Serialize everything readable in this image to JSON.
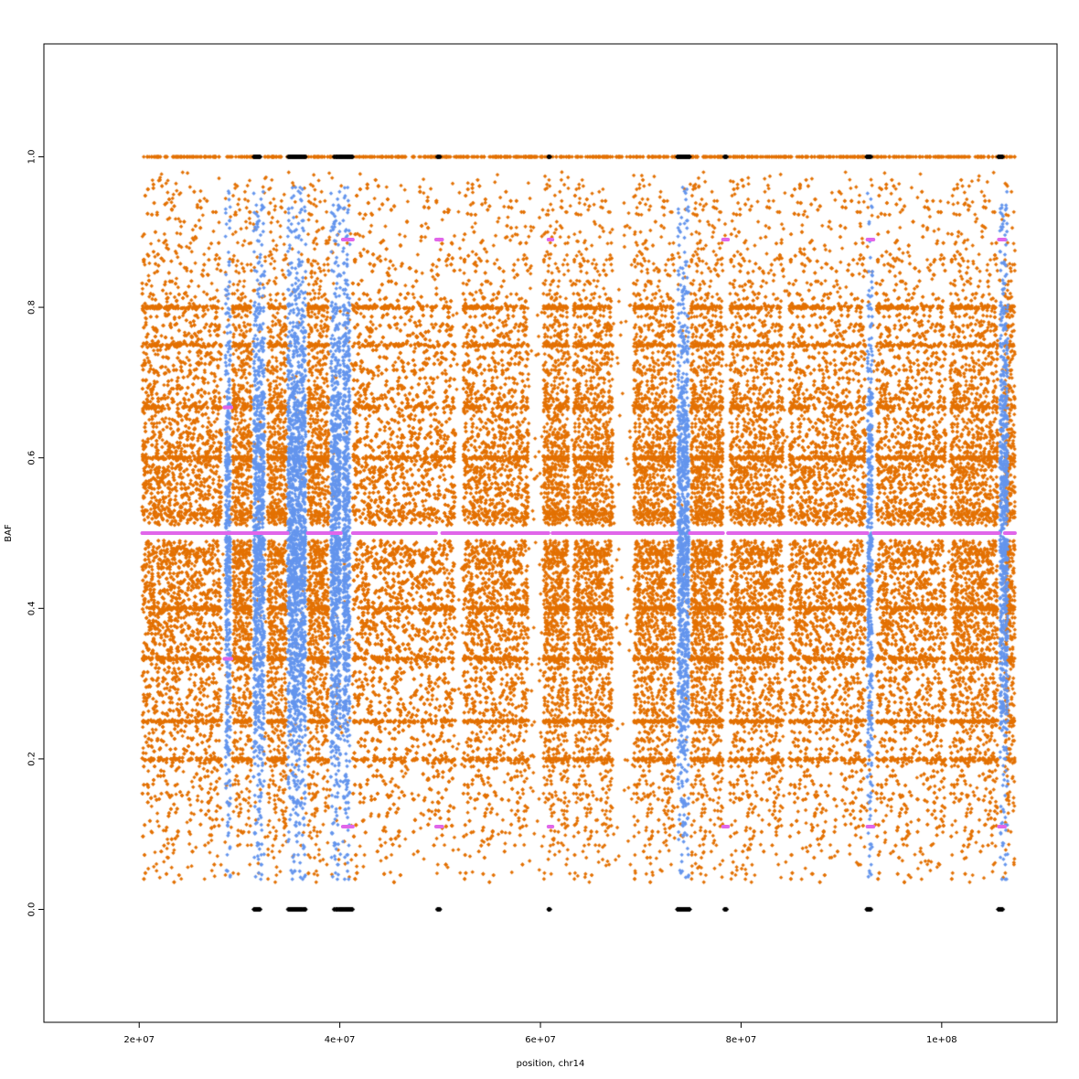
{
  "chart_data": {
    "type": "scatter",
    "title": "",
    "xlabel": "position, chr14",
    "ylabel": "BAF",
    "xlim": [
      10500000,
      111500000
    ],
    "ylim": [
      -0.15,
      1.15
    ],
    "x_ticks": [
      {
        "value": 20000000,
        "label": "2e+07"
      },
      {
        "value": 40000000,
        "label": "4e+07"
      },
      {
        "value": 60000000,
        "label": "6e+07"
      },
      {
        "value": 80000000,
        "label": "8e+07"
      },
      {
        "value": 100000000,
        "label": "1e+08"
      }
    ],
    "y_ticks": [
      {
        "value": 0.0,
        "label": "0.0"
      },
      {
        "value": 0.2,
        "label": "0.2"
      },
      {
        "value": 0.4,
        "label": "0.4"
      },
      {
        "value": 0.6,
        "label": "0.6"
      },
      {
        "value": 0.8,
        "label": "0.8"
      },
      {
        "value": 1.0,
        "label": "1.0"
      }
    ],
    "grid": false,
    "colors": {
      "heterozygous": "#e37103",
      "abnormal_region": "#6495ed",
      "segment_baf": "#e066ea",
      "homozygous": "#000000"
    },
    "data_range_x": [
      20300000,
      107300000
    ],
    "orange_blocks": [
      [
        20300000,
        28200000
      ],
      [
        29300000,
        31200000
      ],
      [
        32800000,
        34700000
      ],
      [
        36800000,
        38900000
      ],
      [
        41300000,
        51500000
      ],
      [
        52300000,
        58800000
      ],
      [
        60300000,
        62800000
      ],
      [
        63300000,
        67200000
      ],
      [
        69300000,
        73400000
      ],
      [
        75000000,
        78200000
      ],
      [
        78900000,
        84200000
      ],
      [
        84800000,
        92400000
      ],
      [
        93500000,
        100400000
      ],
      [
        100900000,
        105600000
      ],
      [
        106300000,
        107300000
      ]
    ],
    "blue_bands": [
      [
        28600000,
        29100000
      ],
      [
        31400000,
        32500000
      ],
      [
        34800000,
        36600000
      ],
      [
        39100000,
        40100000
      ],
      [
        40300000,
        41000000
      ],
      [
        73700000,
        74800000
      ],
      [
        92600000,
        93100000
      ],
      [
        105800000,
        106600000
      ]
    ],
    "segments": [
      {
        "x0": 20300000,
        "x1": 28500000,
        "baf": 0.5
      },
      {
        "x0": 28500000,
        "x1": 29200000,
        "baf": 0.5
      },
      {
        "x0": 28500000,
        "x1": 29200000,
        "baf": 0.667
      },
      {
        "x0": 28500000,
        "x1": 29200000,
        "baf": 0.333
      },
      {
        "x0": 29300000,
        "x1": 31300000,
        "baf": 0.5
      },
      {
        "x0": 31400000,
        "x1": 32600000,
        "baf": 0.5
      },
      {
        "x0": 32700000,
        "x1": 34800000,
        "baf": 0.5
      },
      {
        "x0": 36800000,
        "x1": 39000000,
        "baf": 0.5
      },
      {
        "x0": 39200000,
        "x1": 40100000,
        "baf": 0.5
      },
      {
        "x0": 40300000,
        "x1": 41300000,
        "baf": 0.89
      },
      {
        "x0": 40300000,
        "x1": 41300000,
        "baf": 0.11
      },
      {
        "x0": 41300000,
        "x1": 49600000,
        "baf": 0.5
      },
      {
        "x0": 49600000,
        "x1": 50200000,
        "baf": 0.89
      },
      {
        "x0": 49600000,
        "x1": 50200000,
        "baf": 0.11
      },
      {
        "x0": 50200000,
        "x1": 60800000,
        "baf": 0.5
      },
      {
        "x0": 60800000,
        "x1": 61200000,
        "baf": 0.89
      },
      {
        "x0": 60800000,
        "x1": 61200000,
        "baf": 0.11
      },
      {
        "x0": 61200000,
        "x1": 73600000,
        "baf": 0.5
      },
      {
        "x0": 74900000,
        "x1": 78200000,
        "baf": 0.5
      },
      {
        "x0": 78200000,
        "x1": 78700000,
        "baf": 0.89
      },
      {
        "x0": 78200000,
        "x1": 78700000,
        "baf": 0.11
      },
      {
        "x0": 78700000,
        "x1": 92600000,
        "baf": 0.5
      },
      {
        "x0": 92600000,
        "x1": 93200000,
        "baf": 0.89
      },
      {
        "x0": 92600000,
        "x1": 93200000,
        "baf": 0.11
      },
      {
        "x0": 93200000,
        "x1": 105700000,
        "baf": 0.5
      },
      {
        "x0": 105700000,
        "x1": 106300000,
        "baf": 0.89
      },
      {
        "x0": 105700000,
        "x1": 106300000,
        "baf": 0.11
      },
      {
        "x0": 106300000,
        "x1": 107300000,
        "baf": 0.5
      }
    ],
    "homozygous_runs": [
      [
        31400000,
        32100000
      ],
      [
        34800000,
        36600000
      ],
      [
        39400000,
        41300000
      ],
      [
        49700000,
        50000000
      ],
      [
        60800000,
        61000000
      ],
      [
        73600000,
        74900000
      ],
      [
        78300000,
        78600000
      ],
      [
        92500000,
        93000000
      ],
      [
        105600000,
        106100000
      ]
    ],
    "orange_homozygous_span": [
      20300000,
      107300000
    ]
  }
}
